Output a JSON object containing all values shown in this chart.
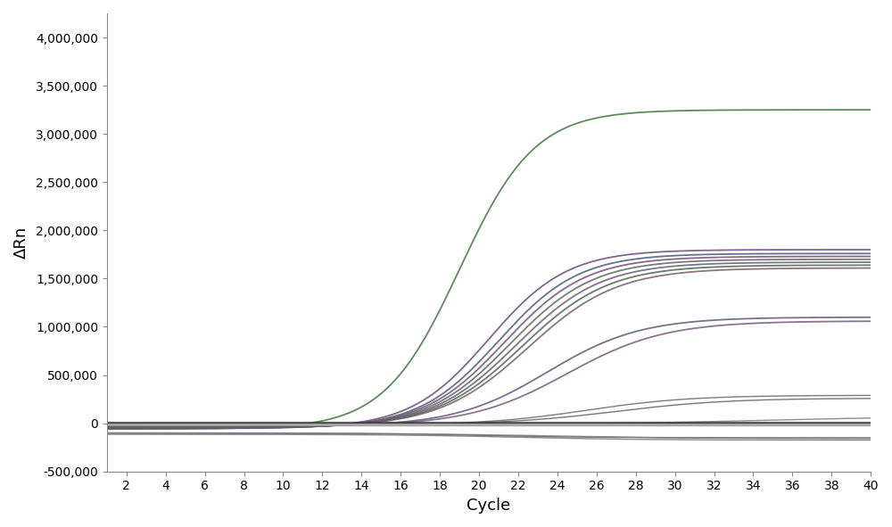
{
  "title": "",
  "xlabel": "Cycle",
  "ylabel": "ΔRn",
  "xlim": [
    1,
    40
  ],
  "ylim": [
    -500000,
    4250000
  ],
  "xticks": [
    2,
    4,
    6,
    8,
    10,
    12,
    14,
    16,
    18,
    20,
    22,
    24,
    26,
    28,
    30,
    32,
    34,
    36,
    38,
    40
  ],
  "yticks": [
    -500000,
    0,
    500000,
    1000000,
    1500000,
    2000000,
    2500000,
    3000000,
    3500000,
    4000000
  ],
  "background_color": "#ffffff",
  "positive_curves": [
    {
      "Ct": 19.0,
      "plateau": 3250000,
      "baseline": -60000,
      "steepness": 0.52,
      "color": "#3a7a3a"
    },
    {
      "Ct": 20.5,
      "plateau": 1800000,
      "baseline": -55000,
      "steepness": 0.5,
      "color": "#6a4a7a"
    },
    {
      "Ct": 21.0,
      "plateau": 1760000,
      "baseline": -52000,
      "steepness": 0.49,
      "color": "#4a5a7a"
    },
    {
      "Ct": 21.3,
      "plateau": 1730000,
      "baseline": -50000,
      "steepness": 0.48,
      "color": "#7a4a7a"
    },
    {
      "Ct": 21.6,
      "plateau": 1700000,
      "baseline": -48000,
      "steepness": 0.47,
      "color": "#5a6a5a"
    },
    {
      "Ct": 21.9,
      "plateau": 1670000,
      "baseline": -46000,
      "steepness": 0.46,
      "color": "#6a5a7a"
    },
    {
      "Ct": 22.2,
      "plateau": 1640000,
      "baseline": -44000,
      "steepness": 0.45,
      "color": "#4a6a4a"
    },
    {
      "Ct": 22.5,
      "plateau": 1610000,
      "baseline": -42000,
      "steepness": 0.44,
      "color": "#7a5a6a"
    },
    {
      "Ct": 23.5,
      "plateau": 1100000,
      "baseline": -35000,
      "steepness": 0.42,
      "color": "#5a5a7a"
    },
    {
      "Ct": 24.5,
      "plateau": 1060000,
      "baseline": -30000,
      "steepness": 0.4,
      "color": "#7a5a7a"
    },
    {
      "Ct": 25.5,
      "plateau": 290000,
      "baseline": -20000,
      "steepness": 0.38,
      "color": "#5a6a6a"
    },
    {
      "Ct": 27.0,
      "plateau": 260000,
      "baseline": -15000,
      "steepness": 0.35,
      "color": "#6a5a5a"
    },
    {
      "Ct": 34.0,
      "plateau": 65000,
      "baseline": -8000,
      "steepness": 0.28,
      "color": "#7a7a7a"
    }
  ],
  "negative_curves": [
    {
      "Ct": 20.0,
      "plateau": -150000,
      "baseline": -100000,
      "steepness": 0.35,
      "color": "#505050"
    },
    {
      "Ct": 22.0,
      "plateau": -175000,
      "baseline": -115000,
      "steepness": 0.3,
      "color": "#606060"
    },
    {
      "Ct": 24.0,
      "plateau": -160000,
      "baseline": -105000,
      "steepness": 0.28,
      "color": "#707070"
    }
  ],
  "flat_bundle": [
    {
      "value": 12000,
      "color": "#2a2a2a"
    },
    {
      "value": 8000,
      "color": "#383838"
    },
    {
      "value": 5000,
      "color": "#444444"
    },
    {
      "value": 3000,
      "color": "#505050"
    },
    {
      "value": 1500,
      "color": "#5a5a5a"
    },
    {
      "value": 500,
      "color": "#606060"
    },
    {
      "value": 0,
      "color": "#444444"
    },
    {
      "value": -1000,
      "color": "#555555"
    },
    {
      "value": -2500,
      "color": "#666666"
    },
    {
      "value": -4000,
      "color": "#777777"
    },
    {
      "value": -6000,
      "color": "#888888"
    },
    {
      "value": -8000,
      "color": "#999999"
    },
    {
      "value": -10000,
      "color": "#aaaaaa"
    },
    {
      "value": -13000,
      "color": "#bbbbbb"
    },
    {
      "value": -16000,
      "color": "#cccccc"
    },
    {
      "value": -20000,
      "color": "#aaaaaa"
    },
    {
      "value": -24000,
      "color": "#888888"
    }
  ]
}
